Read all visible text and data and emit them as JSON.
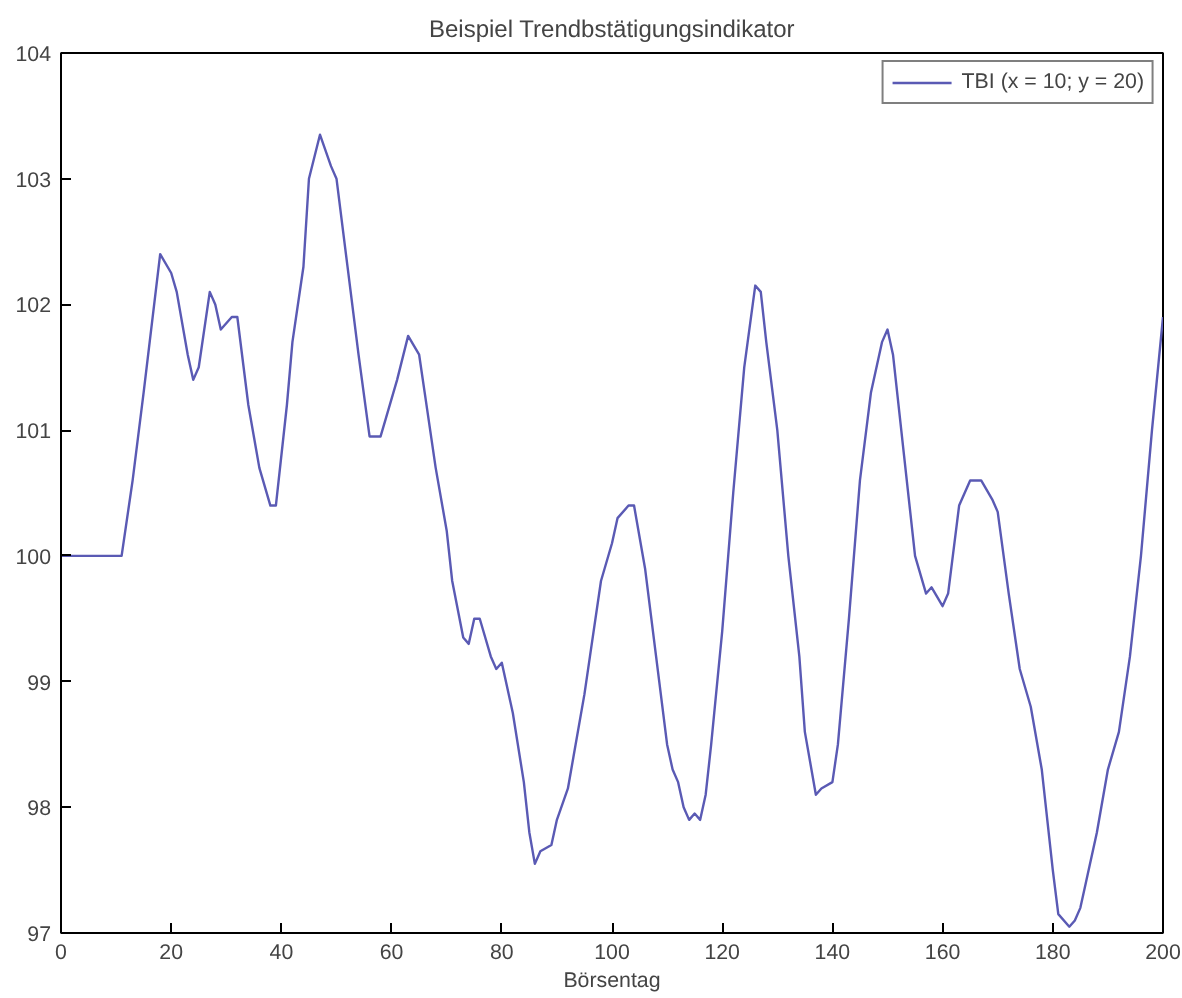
{
  "chart_data": {
    "type": "line",
    "title": "Beispiel Trendbstätigungsindikator",
    "xlabel": "Börsentag",
    "xlim": [
      0,
      200
    ],
    "ylim": [
      97,
      104
    ],
    "xticks": [
      0,
      20,
      40,
      60,
      80,
      100,
      120,
      140,
      160,
      180,
      200
    ],
    "yticks": [
      97,
      98,
      99,
      100,
      101,
      102,
      103,
      104
    ],
    "grid": false,
    "legend": "top right",
    "line_style": "solid",
    "series": [
      {
        "name": "TBI (x = 10; y = 20)",
        "color": "#5a5ab4",
        "x": [
          0,
          11,
          13,
          15,
          18,
          20,
          21,
          23,
          24,
          25,
          27,
          28,
          29,
          31,
          32,
          34,
          36,
          38,
          39,
          41,
          42,
          44,
          45,
          47,
          49,
          50,
          52,
          54,
          56,
          58,
          59,
          61,
          63,
          65,
          66,
          68,
          70,
          71,
          73,
          74,
          75,
          76,
          78,
          79,
          80,
          82,
          84,
          85,
          86,
          87,
          89,
          90,
          92,
          93,
          95,
          96,
          98,
          100,
          101,
          103,
          104,
          106,
          108,
          110,
          111,
          112,
          113,
          114,
          115,
          116,
          117,
          118,
          120,
          122,
          124,
          126,
          127,
          128,
          130,
          132,
          134,
          135,
          137,
          138,
          140,
          141,
          143,
          145,
          147,
          149,
          150,
          151,
          153,
          155,
          157,
          158,
          160,
          161,
          163,
          165,
          167,
          169,
          170,
          172,
          174,
          176,
          178,
          180,
          181,
          183,
          184,
          185,
          186,
          188,
          190,
          192,
          194,
          196,
          198,
          200
        ],
        "values": [
          100,
          100,
          100.6,
          101.3,
          102.4,
          102.25,
          102.1,
          101.6,
          101.4,
          101.5,
          102.1,
          102.0,
          101.8,
          101.9,
          101.9,
          101.2,
          100.7,
          100.4,
          100.4,
          101.2,
          101.7,
          102.3,
          103.0,
          103.35,
          103.1,
          103.0,
          102.3,
          101.6,
          100.95,
          100.95,
          101.1,
          101.4,
          101.75,
          101.6,
          101.3,
          100.7,
          100.2,
          99.8,
          99.35,
          99.3,
          99.5,
          99.5,
          99.2,
          99.1,
          99.15,
          98.75,
          98.2,
          97.8,
          97.55,
          97.65,
          97.7,
          97.9,
          98.15,
          98.4,
          98.9,
          99.2,
          99.8,
          100.1,
          100.3,
          100.4,
          100.4,
          99.9,
          99.2,
          98.5,
          98.3,
          98.2,
          98.0,
          97.9,
          97.95,
          97.9,
          98.1,
          98.5,
          99.4,
          100.5,
          101.5,
          102.15,
          102.1,
          101.7,
          101.0,
          100.0,
          99.2,
          98.6,
          98.1,
          98.15,
          98.2,
          98.5,
          99.5,
          100.6,
          101.3,
          101.7,
          101.8,
          101.6,
          100.8,
          100.0,
          99.7,
          99.75,
          99.6,
          99.7,
          100.4,
          100.6,
          100.6,
          100.45,
          100.35,
          99.7,
          99.1,
          98.8,
          98.3,
          97.5,
          97.15,
          97.05,
          97.1,
          97.2,
          97.4,
          97.8,
          98.3,
          98.6,
          99.2,
          100.0,
          101.0,
          101.9
        ]
      }
    ]
  }
}
